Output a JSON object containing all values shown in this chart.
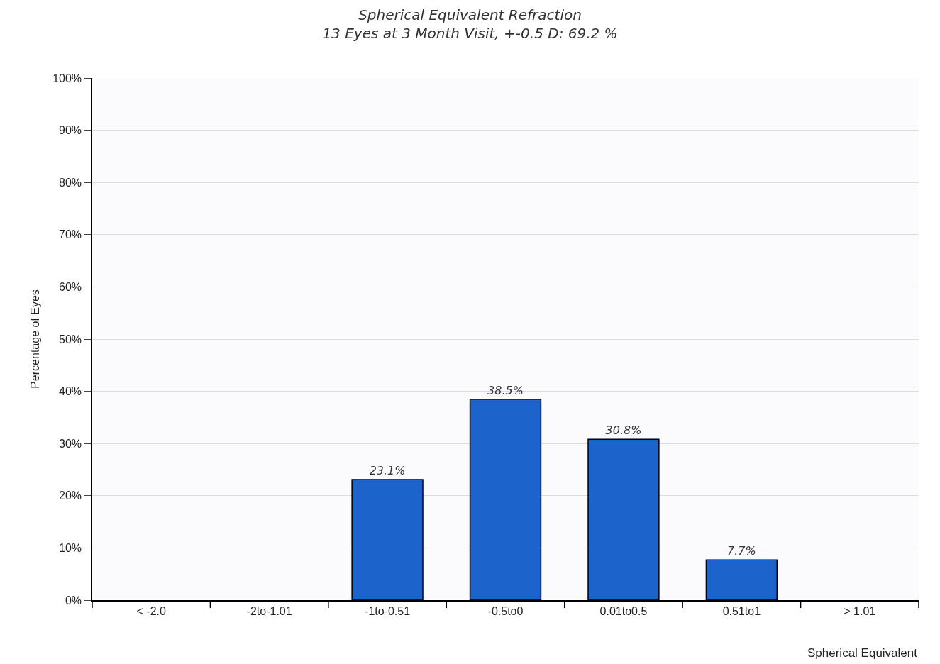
{
  "chart_data": {
    "type": "bar",
    "title": "Spherical Equivalent Refraction",
    "subtitle": "13 Eyes at 3 Month Visit, +-0.5 D: 69.2 %",
    "xlabel": "Spherical Equivalent",
    "ylabel": "Percentage of Eyes",
    "categories": [
      "< -2.0",
      "-2to-1.01",
      "-1to-0.51",
      "-0.5to0",
      "0.01to0.5",
      "0.51to1",
      "> 1.01"
    ],
    "values": [
      0,
      0,
      23.1,
      38.5,
      30.8,
      7.7,
      0
    ],
    "value_labels": [
      null,
      null,
      "23.1%",
      "38.5%",
      "30.8%",
      "7.7%",
      null
    ],
    "color": "#1c64cc",
    "ylim": [
      0,
      100
    ],
    "yticks": [
      {
        "value": 0,
        "label": "0%"
      },
      {
        "value": 10,
        "label": "10%"
      },
      {
        "value": 20,
        "label": "20%"
      },
      {
        "value": 30,
        "label": "30%"
      },
      {
        "value": 40,
        "label": "40%"
      },
      {
        "value": 50,
        "label": "50%"
      },
      {
        "value": 60,
        "label": "60%"
      },
      {
        "value": 70,
        "label": "70%"
      },
      {
        "value": 80,
        "label": "80%"
      },
      {
        "value": 90,
        "label": "90%"
      },
      {
        "value": 100,
        "label": "100%"
      }
    ],
    "grid": "y",
    "legend": false
  }
}
